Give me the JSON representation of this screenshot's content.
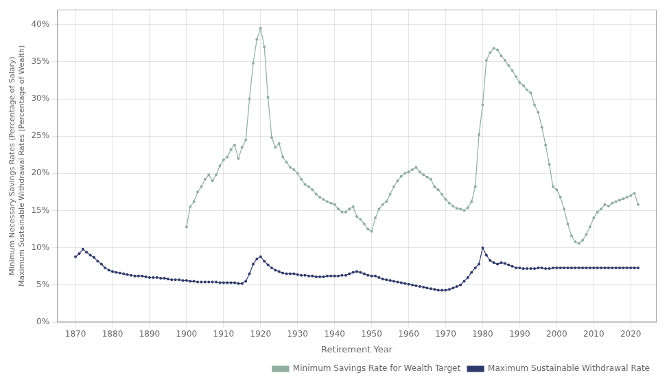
{
  "chart_data": {
    "type": "line",
    "xlabel": "Retirement Year",
    "ylabel": [
      "Minimum Necessary Savings Rates (Percentage of Salary)",
      "Maximum Sustainable Withdrawal Rates (Percentage of Wealth)"
    ],
    "xlim": [
      1865,
      2027
    ],
    "xticks": [
      1870,
      1880,
      1890,
      1900,
      1910,
      1920,
      1930,
      1940,
      1950,
      1960,
      1970,
      1980,
      1990,
      2000,
      2010,
      2020
    ],
    "ylim": [
      0.0,
      0.42
    ],
    "yticks": [
      {
        "value": 0.0,
        "label": "0%"
      },
      {
        "value": 0.05,
        "label": "5%"
      },
      {
        "value": 0.1,
        "label": "10%"
      },
      {
        "value": 0.15,
        "label": "15%"
      },
      {
        "value": 0.2,
        "label": "20%"
      },
      {
        "value": 0.25,
        "label": "25%"
      },
      {
        "value": 0.3,
        "label": "30%"
      },
      {
        "value": 0.35,
        "label": "35%"
      },
      {
        "value": 0.4,
        "label": "40%"
      }
    ],
    "grid": true,
    "legend": "lower right",
    "series": [
      {
        "name": "Minimum Savings Rate for Wealth Target",
        "color": "#8fada0",
        "marker": "circle",
        "x": [
          1900,
          1901,
          1902,
          1903,
          1904,
          1905,
          1906,
          1907,
          1908,
          1909,
          1910,
          1911,
          1912,
          1913,
          1914,
          1915,
          1916,
          1917,
          1918,
          1919,
          1920,
          1921,
          1922,
          1923,
          1924,
          1925,
          1926,
          1927,
          1928,
          1929,
          1930,
          1931,
          1932,
          1933,
          1934,
          1935,
          1936,
          1937,
          1938,
          1939,
          1940,
          1941,
          1942,
          1943,
          1944,
          1945,
          1946,
          1947,
          1948,
          1949,
          1950,
          1951,
          1952,
          1953,
          1954,
          1955,
          1956,
          1957,
          1958,
          1959,
          1960,
          1961,
          1962,
          1963,
          1964,
          1965,
          1966,
          1967,
          1968,
          1969,
          1970,
          1971,
          1972,
          1973,
          1974,
          1975,
          1976,
          1977,
          1978,
          1979,
          1980,
          1981,
          1982,
          1983,
          1984,
          1985,
          1986,
          1987,
          1988,
          1989,
          1990,
          1991,
          1992,
          1993,
          1994,
          1995,
          1996,
          1997,
          1998,
          1999,
          2000,
          2001,
          2002,
          2003,
          2004,
          2005,
          2006,
          2007,
          2008,
          2009,
          2010,
          2011,
          2012,
          2013,
          2014,
          2015,
          2016,
          2017,
          2018,
          2019,
          2020,
          2021,
          2022
        ],
        "values": [
          0.128,
          0.155,
          0.162,
          0.175,
          0.182,
          0.192,
          0.198,
          0.19,
          0.198,
          0.21,
          0.218,
          0.222,
          0.232,
          0.238,
          0.22,
          0.235,
          0.245,
          0.3,
          0.348,
          0.38,
          0.395,
          0.37,
          0.302,
          0.248,
          0.235,
          0.24,
          0.222,
          0.215,
          0.208,
          0.205,
          0.2,
          0.192,
          0.185,
          0.182,
          0.178,
          0.172,
          0.168,
          0.165,
          0.162,
          0.16,
          0.158,
          0.152,
          0.148,
          0.148,
          0.152,
          0.155,
          0.142,
          0.138,
          0.132,
          0.125,
          0.122,
          0.14,
          0.152,
          0.158,
          0.162,
          0.172,
          0.182,
          0.19,
          0.196,
          0.2,
          0.202,
          0.205,
          0.208,
          0.202,
          0.198,
          0.195,
          0.192,
          0.182,
          0.178,
          0.172,
          0.165,
          0.16,
          0.156,
          0.153,
          0.152,
          0.15,
          0.154,
          0.162,
          0.182,
          0.252,
          0.292,
          0.352,
          0.362,
          0.368,
          0.366,
          0.358,
          0.352,
          0.345,
          0.338,
          0.33,
          0.322,
          0.318,
          0.312,
          0.308,
          0.292,
          0.282,
          0.262,
          0.238,
          0.212,
          0.182,
          0.178,
          0.168,
          0.152,
          0.132,
          0.116,
          0.108,
          0.106,
          0.11,
          0.118,
          0.128,
          0.14,
          0.148,
          0.152,
          0.158,
          0.156,
          0.16,
          0.162,
          0.164,
          0.166,
          0.168,
          0.17,
          0.173,
          0.158
        ]
      },
      {
        "name": "Maximum Sustainable Withdrawal Rate",
        "color": "#2d3a6b",
        "marker": "circle",
        "x": [
          1870,
          1871,
          1872,
          1873,
          1874,
          1875,
          1876,
          1877,
          1878,
          1879,
          1880,
          1881,
          1882,
          1883,
          1884,
          1885,
          1886,
          1887,
          1888,
          1889,
          1890,
          1891,
          1892,
          1893,
          1894,
          1895,
          1896,
          1897,
          1898,
          1899,
          1900,
          1901,
          1902,
          1903,
          1904,
          1905,
          1906,
          1907,
          1908,
          1909,
          1910,
          1911,
          1912,
          1913,
          1914,
          1915,
          1916,
          1917,
          1918,
          1919,
          1920,
          1921,
          1922,
          1923,
          1924,
          1925,
          1926,
          1927,
          1928,
          1929,
          1930,
          1931,
          1932,
          1933,
          1934,
          1935,
          1936,
          1937,
          1938,
          1939,
          1940,
          1941,
          1942,
          1943,
          1944,
          1945,
          1946,
          1947,
          1948,
          1949,
          1950,
          1951,
          1952,
          1953,
          1954,
          1955,
          1956,
          1957,
          1958,
          1959,
          1960,
          1961,
          1962,
          1963,
          1964,
          1965,
          1966,
          1967,
          1968,
          1969,
          1970,
          1971,
          1972,
          1973,
          1974,
          1975,
          1976,
          1977,
          1978,
          1979,
          1980,
          1981,
          1982,
          1983,
          1984,
          1985,
          1986,
          1987,
          1988,
          1989,
          1990,
          1991,
          1992,
          1993,
          1994,
          1995,
          1996,
          1997,
          1998,
          1999,
          2000,
          2001,
          2002,
          2003,
          2004,
          2005,
          2006,
          2007,
          2008,
          2009,
          2010,
          2011,
          2012,
          2013,
          2014,
          2015,
          2016,
          2017,
          2018,
          2019,
          2020,
          2021,
          2022
        ],
        "values": [
          0.088,
          0.092,
          0.098,
          0.094,
          0.09,
          0.087,
          0.082,
          0.078,
          0.073,
          0.07,
          0.068,
          0.067,
          0.066,
          0.065,
          0.064,
          0.063,
          0.062,
          0.062,
          0.062,
          0.061,
          0.06,
          0.06,
          0.06,
          0.059,
          0.059,
          0.058,
          0.057,
          0.057,
          0.057,
          0.056,
          0.056,
          0.055,
          0.055,
          0.054,
          0.054,
          0.054,
          0.054,
          0.054,
          0.054,
          0.053,
          0.053,
          0.053,
          0.053,
          0.053,
          0.052,
          0.052,
          0.055,
          0.065,
          0.078,
          0.085,
          0.088,
          0.082,
          0.077,
          0.073,
          0.07,
          0.068,
          0.066,
          0.065,
          0.065,
          0.065,
          0.064,
          0.063,
          0.063,
          0.062,
          0.062,
          0.061,
          0.061,
          0.061,
          0.062,
          0.062,
          0.062,
          0.062,
          0.063,
          0.063,
          0.065,
          0.067,
          0.068,
          0.067,
          0.065,
          0.063,
          0.062,
          0.062,
          0.06,
          0.058,
          0.057,
          0.056,
          0.055,
          0.054,
          0.053,
          0.052,
          0.051,
          0.05,
          0.049,
          0.048,
          0.047,
          0.046,
          0.045,
          0.044,
          0.043,
          0.043,
          0.043,
          0.044,
          0.046,
          0.048,
          0.05,
          0.055,
          0.06,
          0.067,
          0.073,
          0.078,
          0.1,
          0.09,
          0.083,
          0.08,
          0.078,
          0.08,
          0.079,
          0.077,
          0.075,
          0.073,
          0.073,
          0.072,
          0.072,
          0.072,
          0.072,
          0.073,
          0.073,
          0.072,
          0.072,
          0.073,
          0.073,
          0.073,
          0.073,
          0.073,
          0.073,
          0.073,
          0.073,
          0.073,
          0.073,
          0.073,
          0.073,
          0.073,
          0.073,
          0.073,
          0.073,
          0.073,
          0.073,
          0.073,
          0.073,
          0.073,
          0.073,
          0.073,
          0.073
        ]
      }
    ]
  }
}
